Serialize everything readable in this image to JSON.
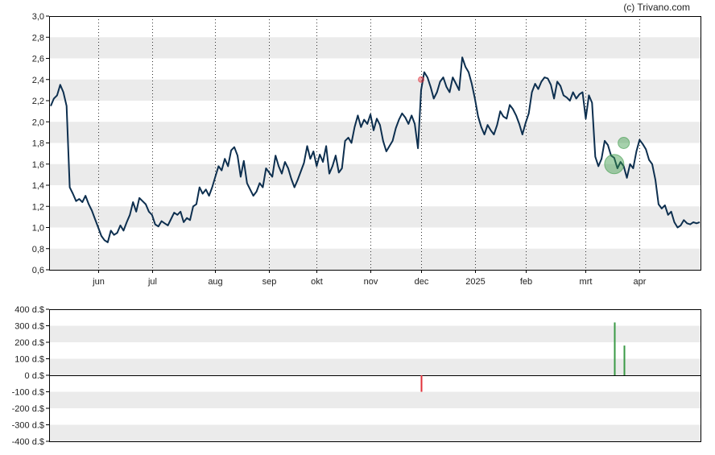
{
  "credit": "(c) Trivano.com",
  "chart_data": [
    {
      "type": "line",
      "title": "",
      "xlabel": "",
      "ylabel": "",
      "ylim": [
        0.6,
        3.0
      ],
      "y_ticks": [
        "3,0",
        "2,8",
        "2,6",
        "2,4",
        "2,2",
        "2,0",
        "1,8",
        "1,6",
        "1,4",
        "1,2",
        "1,0",
        "0,8",
        "0,6"
      ],
      "x_ticks": [
        "jun",
        "jul",
        "aug",
        "sep",
        "okt",
        "nov",
        "dec",
        "2025",
        "feb",
        "mrt",
        "apr"
      ],
      "grid": "alternating horizontal bands, dotted vertical month lines",
      "colors": {
        "line": "#0d2f4f",
        "band": "#ebebeb",
        "buy": "#3a9a46",
        "sell": "#e0303a"
      },
      "series": [
        {
          "values": [
            2.15,
            2.22,
            2.25,
            2.35,
            2.28,
            2.15,
            1.38,
            1.32,
            1.25,
            1.27,
            1.24,
            1.3,
            1.22,
            1.16,
            1.08,
            1.0,
            0.92,
            0.88,
            0.86,
            0.97,
            0.93,
            0.95,
            1.02,
            0.97,
            1.05,
            1.12,
            1.24,
            1.15,
            1.28,
            1.25,
            1.22,
            1.15,
            1.12,
            1.03,
            1.01,
            1.06,
            1.04,
            1.02,
            1.08,
            1.14,
            1.12,
            1.15,
            1.05,
            1.09,
            1.07,
            1.2,
            1.22,
            1.38,
            1.32,
            1.36,
            1.3,
            1.38,
            1.48,
            1.58,
            1.54,
            1.65,
            1.58,
            1.73,
            1.76,
            1.68,
            1.48,
            1.63,
            1.42,
            1.36,
            1.3,
            1.34,
            1.42,
            1.38,
            1.56,
            1.52,
            1.48,
            1.68,
            1.58,
            1.51,
            1.62,
            1.56,
            1.46,
            1.38,
            1.45,
            1.53,
            1.61,
            1.77,
            1.65,
            1.72,
            1.58,
            1.69,
            1.62,
            1.77,
            1.51,
            1.58,
            1.68,
            1.52,
            1.56,
            1.82,
            1.85,
            1.8,
            1.95,
            2.06,
            1.95,
            2.02,
            1.98,
            2.07,
            1.92,
            2.03,
            1.97,
            1.82,
            1.72,
            1.77,
            1.82,
            1.94,
            2.02,
            2.08,
            2.04,
            1.98,
            2.06,
            1.98,
            1.75,
            2.3,
            2.47,
            2.42,
            2.33,
            2.22,
            2.28,
            2.38,
            2.42,
            2.33,
            2.28,
            2.42,
            2.36,
            2.3,
            2.61,
            2.52,
            2.47,
            2.36,
            2.22,
            2.05,
            1.95,
            1.88,
            1.97,
            1.92,
            1.88,
            1.97,
            2.1,
            2.05,
            2.03,
            2.16,
            2.12,
            2.06,
            1.98,
            1.88,
            1.99,
            2.08,
            2.28,
            2.36,
            2.31,
            2.38,
            2.42,
            2.41,
            2.35,
            2.22,
            2.38,
            2.34,
            2.25,
            2.23,
            2.2,
            2.28,
            2.22,
            2.26,
            2.28,
            2.03,
            2.25,
            2.18,
            1.67,
            1.58,
            1.65,
            1.82,
            1.78,
            1.68,
            1.66,
            1.56,
            1.62,
            1.58,
            1.47,
            1.6,
            1.56,
            1.72,
            1.83,
            1.79,
            1.74,
            1.64,
            1.6,
            1.45,
            1.22,
            1.18,
            1.21,
            1.12,
            1.15,
            1.05,
            1.0,
            1.02,
            1.07,
            1.04,
            1.03,
            1.05,
            1.04,
            1.05
          ]
        }
      ],
      "markers": [
        {
          "type": "sell",
          "index": 117,
          "value": 2.4,
          "size": "small"
        },
        {
          "type": "buy",
          "index": 178,
          "value": 1.6,
          "size": "large"
        },
        {
          "type": "buy",
          "index": 181,
          "value": 1.8,
          "size": "medium"
        }
      ]
    },
    {
      "type": "bar",
      "title": "",
      "xlabel": "",
      "ylabel": "",
      "ylim": [
        -400,
        400
      ],
      "y_ticks": [
        "400 d.$",
        "300 d.$",
        "200 d.$",
        "100 d.$",
        "0 d.$",
        "-100 d.$",
        "-200 d.$",
        "-300 d.$",
        "-400 d.$"
      ],
      "series": [
        {
          "points": [
            {
              "index": 117,
              "value": -100,
              "kind": "sell"
            },
            {
              "index": 178,
              "value": 320,
              "kind": "buy"
            },
            {
              "index": 181,
              "value": 180,
              "kind": "buy"
            }
          ]
        }
      ]
    }
  ]
}
